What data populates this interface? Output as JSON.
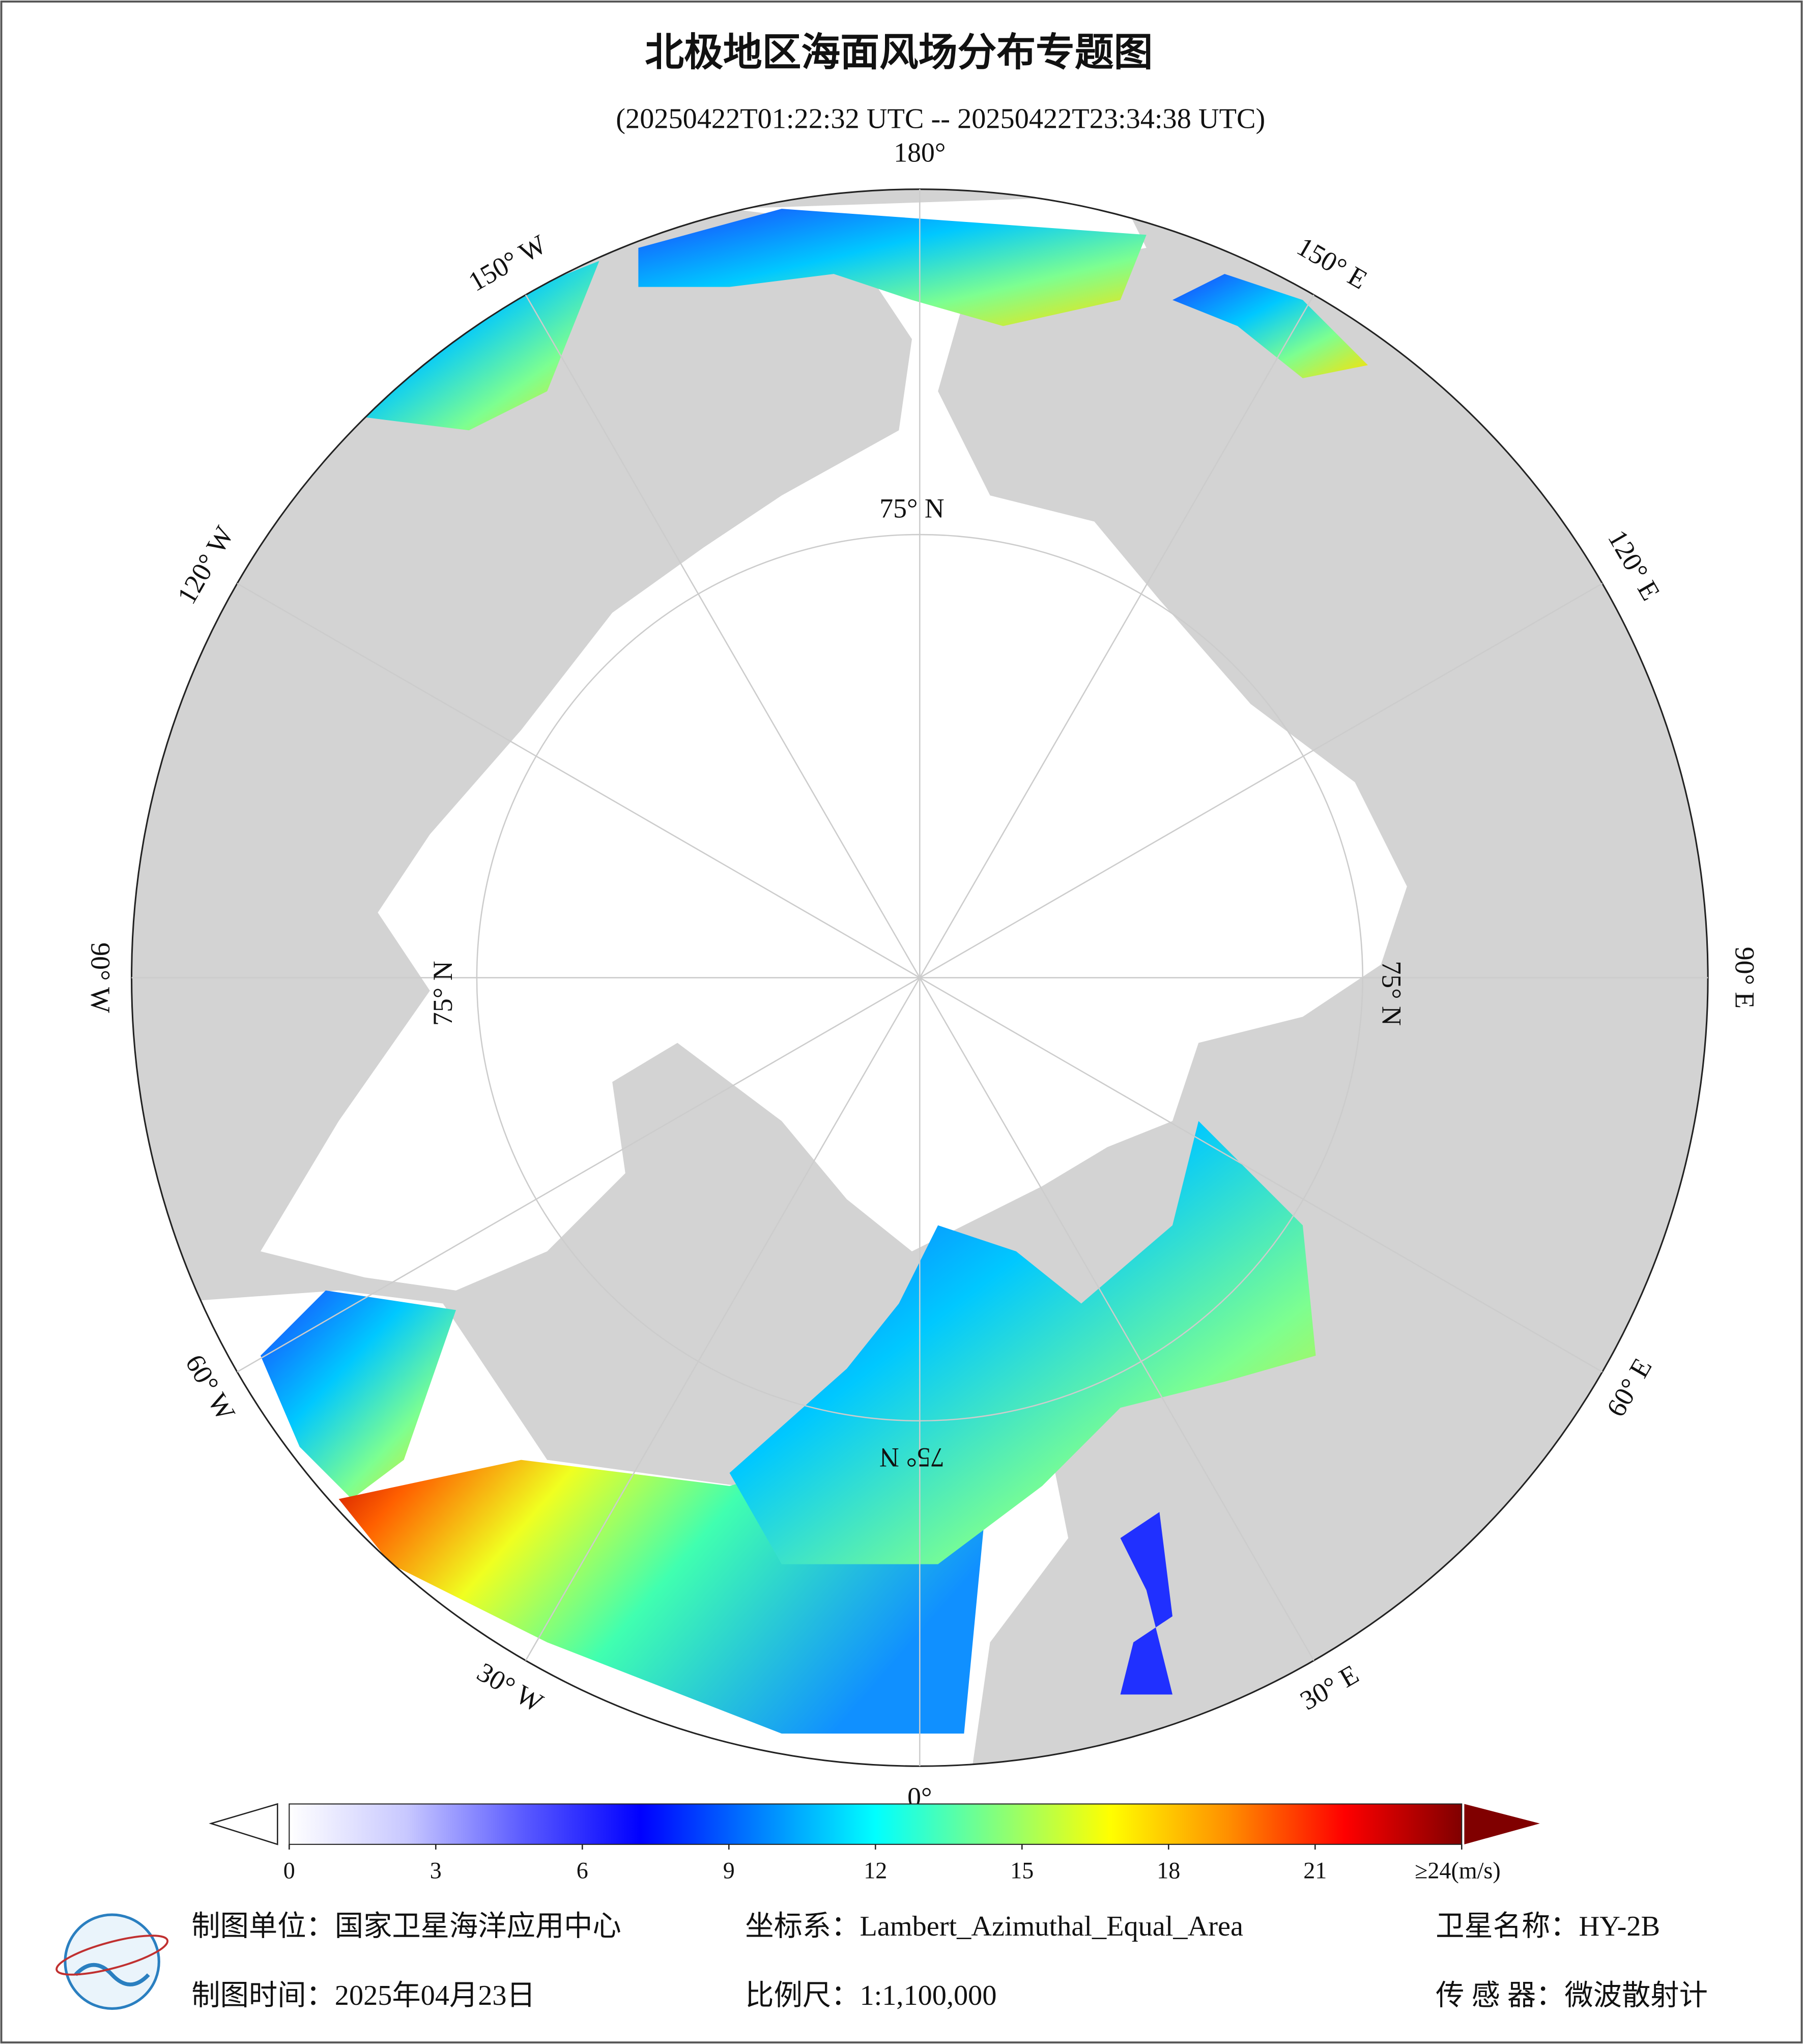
{
  "header": {
    "title": "北极地区海面风场分布专题图",
    "subtitle": "(20250422T01:22:32 UTC -- 20250422T23:34:38 UTC)"
  },
  "map": {
    "longitude_labels": [
      "180°",
      "150° E",
      "120° E",
      "90° E",
      "60° E",
      "30° E",
      "0°",
      "30° W",
      "60° W",
      "90° W",
      "120° W",
      "150° W"
    ],
    "latitude_labels": [
      "75° N",
      "75° N",
      "75° N",
      "75° N"
    ]
  },
  "colorbar": {
    "xlim": [
      0,
      24
    ],
    "xticks": [
      0,
      3,
      6,
      9,
      12,
      15,
      18,
      21,
      {
        "value": 24,
        "label": "≥24(m/s)"
      }
    ],
    "colors": [
      "#ffffff",
      "#c8c8ff",
      "#5a5aff",
      "#0000ff",
      "#0080ff",
      "#00ffff",
      "#80ff80",
      "#ffff00",
      "#ff9000",
      "#ff0000",
      "#800000"
    ]
  },
  "footer": {
    "unit": "制图单位：国家卫星海洋应用中心",
    "projection": "坐标系：Lambert_Azimuthal_Equal_Area",
    "satellite": "卫星名称：HY-2B",
    "date": "制图时间：2025年04月23日",
    "scale": "比例尺：1:1,100,000",
    "sensor": "传 感 器：微波散射计"
  }
}
